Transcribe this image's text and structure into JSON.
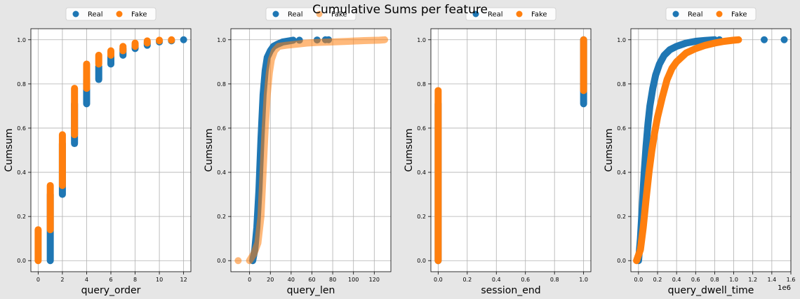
{
  "title": "Cumulative Sums per feature",
  "colors": {
    "real": "#1f77b4",
    "fake": "#ff7f0e"
  },
  "chart_data": [
    {
      "type": "scatter",
      "xlabel": "query_order",
      "ylabel": "Cumsum",
      "xlim": [
        -0.6,
        12.6
      ],
      "ylim": [
        -0.05,
        1.05
      ],
      "xticks": [
        0,
        2,
        4,
        6,
        8,
        10,
        12
      ],
      "yticks": [
        0.0,
        0.2,
        0.4,
        0.6,
        0.8,
        1.0
      ],
      "tick_decimals_x": 0,
      "grid": true,
      "legend": "top-center",
      "series": [
        {
          "name": "Real",
          "color": "#1f77b4",
          "alpha": 1,
          "kind": "points",
          "segments": [
            [
              1,
              0.0,
              0.3
            ],
            [
              2,
              0.3,
              0.53
            ],
            [
              3,
              0.53,
              0.71
            ],
            [
              4,
              0.71,
              0.82
            ],
            [
              5,
              0.82,
              0.88
            ],
            [
              6,
              0.89,
              0.93
            ],
            [
              7,
              0.93,
              0.96
            ],
            [
              8,
              0.96,
              0.975
            ],
            [
              9,
              0.975,
              0.985
            ],
            [
              10,
              0.99,
              0.995
            ],
            [
              11,
              0.995,
              0.998
            ]
          ],
          "points": [
            [
              12,
              1.0
            ]
          ]
        },
        {
          "name": "Fake",
          "color": "#ff7f0e",
          "alpha": 1,
          "kind": "points",
          "segments": [
            [
              0,
              0.0,
              0.14
            ],
            [
              1,
              0.14,
              0.34
            ],
            [
              2,
              0.34,
              0.57
            ],
            [
              3,
              0.57,
              0.78
            ],
            [
              4,
              0.78,
              0.89
            ],
            [
              5,
              0.89,
              0.93
            ],
            [
              6,
              0.93,
              0.95
            ],
            [
              7,
              0.95,
              0.97
            ],
            [
              8,
              0.97,
              0.985
            ],
            [
              9,
              0.985,
              0.995
            ],
            [
              10,
              0.995,
              0.998
            ],
            [
              11,
              0.998,
              1.0
            ]
          ],
          "points": []
        }
      ]
    },
    {
      "type": "scatter",
      "xlabel": "query_len",
      "ylabel": "Cumsum",
      "xlim": [
        -18,
        136
      ],
      "ylim": [
        -0.05,
        1.05
      ],
      "xticks": [
        0,
        20,
        40,
        60,
        80,
        100,
        120
      ],
      "yticks": [
        0.0,
        0.2,
        0.4,
        0.6,
        0.8,
        1.0
      ],
      "tick_decimals_x": 0,
      "grid": true,
      "legend": "top-center",
      "series": [
        {
          "name": "Real",
          "color": "#1f77b4",
          "alpha": 1,
          "kind": "curve",
          "curve": [
            [
              3,
              0.0
            ],
            [
              5,
              0.05
            ],
            [
              7,
              0.15
            ],
            [
              9,
              0.32
            ],
            [
              11,
              0.55
            ],
            [
              13,
              0.75
            ],
            [
              15,
              0.86
            ],
            [
              17,
              0.92
            ],
            [
              20,
              0.95
            ],
            [
              23,
              0.97
            ],
            [
              27,
              0.98
            ],
            [
              32,
              0.99
            ],
            [
              38,
              0.995
            ],
            [
              42,
              0.998
            ]
          ],
          "points": [
            [
              48,
              0.998
            ],
            [
              65,
              0.999
            ],
            [
              73,
              1.0
            ],
            [
              76,
              1.0
            ]
          ]
        },
        {
          "name": "Fake",
          "color": "#ff7f0e",
          "alpha": 0.55,
          "kind": "curve",
          "curve": [
            [
              0,
              0.0
            ],
            [
              4,
              0.03
            ],
            [
              8,
              0.08
            ],
            [
              11,
              0.2
            ],
            [
              13,
              0.4
            ],
            [
              15,
              0.6
            ],
            [
              17,
              0.75
            ],
            [
              19,
              0.85
            ],
            [
              21,
              0.91
            ],
            [
              24,
              0.95
            ],
            [
              28,
              0.97
            ],
            [
              35,
              0.975
            ],
            [
              45,
              0.98
            ],
            [
              55,
              0.985
            ],
            [
              65,
              0.988
            ],
            [
              80,
              0.99
            ],
            [
              95,
              0.993
            ],
            [
              110,
              0.996
            ],
            [
              125,
              0.998
            ],
            [
              130,
              1.0
            ]
          ],
          "points": [
            [
              -11,
              0.0
            ]
          ]
        }
      ]
    },
    {
      "type": "scatter",
      "xlabel": "session_end",
      "ylabel": "Cumsum",
      "xlim": [
        -0.05,
        1.05
      ],
      "ylim": [
        -0.05,
        1.05
      ],
      "xticks": [
        0.0,
        0.2,
        0.4,
        0.6,
        0.8,
        1.0
      ],
      "yticks": [
        0.0,
        0.2,
        0.4,
        0.6,
        0.8,
        1.0
      ],
      "tick_decimals_x": 1,
      "grid": true,
      "legend": "top-center",
      "series": [
        {
          "name": "Real",
          "color": "#1f77b4",
          "alpha": 1,
          "kind": "points",
          "segments": [
            [
              0,
              0.0,
              0.71
            ],
            [
              1,
              0.71,
              1.0
            ]
          ],
          "points": []
        },
        {
          "name": "Fake",
          "color": "#ff7f0e",
          "alpha": 1,
          "kind": "points",
          "segments": [
            [
              0,
              0.0,
              0.77
            ],
            [
              1,
              0.77,
              1.0
            ]
          ],
          "points": []
        }
      ]
    },
    {
      "type": "scatter",
      "xlabel": "query_dwell_time",
      "ylabel": "Cumsum",
      "offset_text": "1e6",
      "xlim": [
        -0.08,
        1.6
      ],
      "ylim": [
        -0.05,
        1.05
      ],
      "xticks": [
        0.0,
        0.2,
        0.4,
        0.6,
        0.8,
        1.0,
        1.2,
        1.4,
        1.6
      ],
      "yticks": [
        0.0,
        0.2,
        0.4,
        0.6,
        0.8,
        1.0
      ],
      "tick_decimals_x": 1,
      "grid": true,
      "legend": "top-center",
      "series": [
        {
          "name": "Real",
          "color": "#1f77b4",
          "alpha": 1,
          "kind": "curve",
          "curve": [
            [
              0.0,
              0.0
            ],
            [
              0.02,
              0.1
            ],
            [
              0.04,
              0.25
            ],
            [
              0.06,
              0.4
            ],
            [
              0.08,
              0.52
            ],
            [
              0.1,
              0.62
            ],
            [
              0.12,
              0.7
            ],
            [
              0.15,
              0.78
            ],
            [
              0.18,
              0.84
            ],
            [
              0.22,
              0.89
            ],
            [
              0.27,
              0.93
            ],
            [
              0.33,
              0.955
            ],
            [
              0.4,
              0.97
            ],
            [
              0.5,
              0.985
            ],
            [
              0.6,
              0.993
            ],
            [
              0.7,
              0.997
            ],
            [
              0.8,
              1.0
            ]
          ],
          "points": [
            [
              0.85,
              1.0
            ],
            [
              1.32,
              1.0
            ],
            [
              1.53,
              1.0
            ]
          ]
        },
        {
          "name": "Fake",
          "color": "#ff7f0e",
          "alpha": 1,
          "kind": "curve",
          "curve": [
            [
              -0.02,
              0.0
            ],
            [
              0.02,
              0.05
            ],
            [
              0.05,
              0.15
            ],
            [
              0.08,
              0.28
            ],
            [
              0.11,
              0.4
            ],
            [
              0.14,
              0.5
            ],
            [
              0.17,
              0.58
            ],
            [
              0.2,
              0.65
            ],
            [
              0.25,
              0.74
            ],
            [
              0.3,
              0.82
            ],
            [
              0.35,
              0.87
            ],
            [
              0.4,
              0.9
            ],
            [
              0.5,
              0.94
            ],
            [
              0.6,
              0.96
            ],
            [
              0.7,
              0.975
            ],
            [
              0.8,
              0.985
            ],
            [
              0.9,
              0.993
            ],
            [
              1.0,
              0.998
            ],
            [
              1.05,
              1.0
            ]
          ],
          "points": []
        }
      ]
    }
  ]
}
